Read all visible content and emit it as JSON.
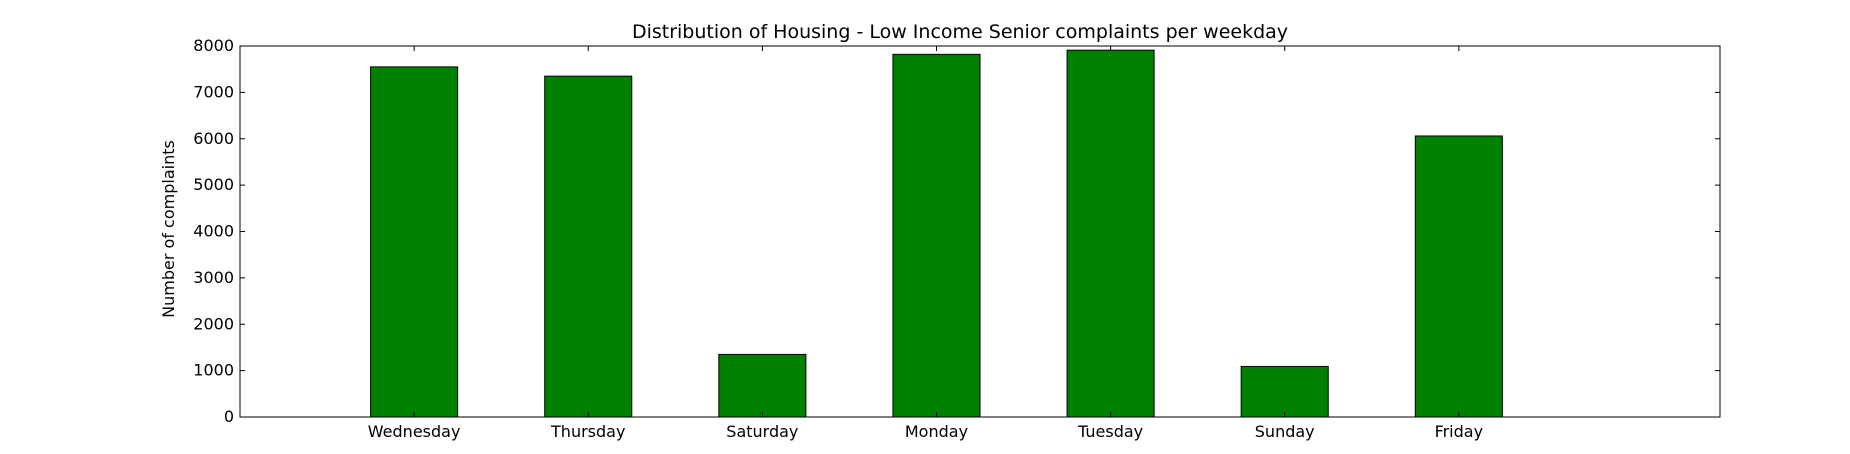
{
  "chart_data": {
    "type": "bar",
    "title": "Distribution of  Housing - Low Income Senior complaints per weekday",
    "xlabel": "",
    "ylabel": "Number of complaints",
    "categories": [
      "Wednesday",
      "Thursday",
      "Saturday",
      "Monday",
      "Tuesday",
      "Sunday",
      "Friday"
    ],
    "values": [
      7550,
      7350,
      1350,
      7820,
      7910,
      1090,
      6060
    ],
    "ylim": [
      0,
      8000
    ],
    "yticks": [
      0,
      1000,
      2000,
      3000,
      4000,
      5000,
      6000,
      7000,
      8000
    ],
    "bar_color": "#008000",
    "edge_color": "#000000",
    "grid": false,
    "legend": "none"
  }
}
